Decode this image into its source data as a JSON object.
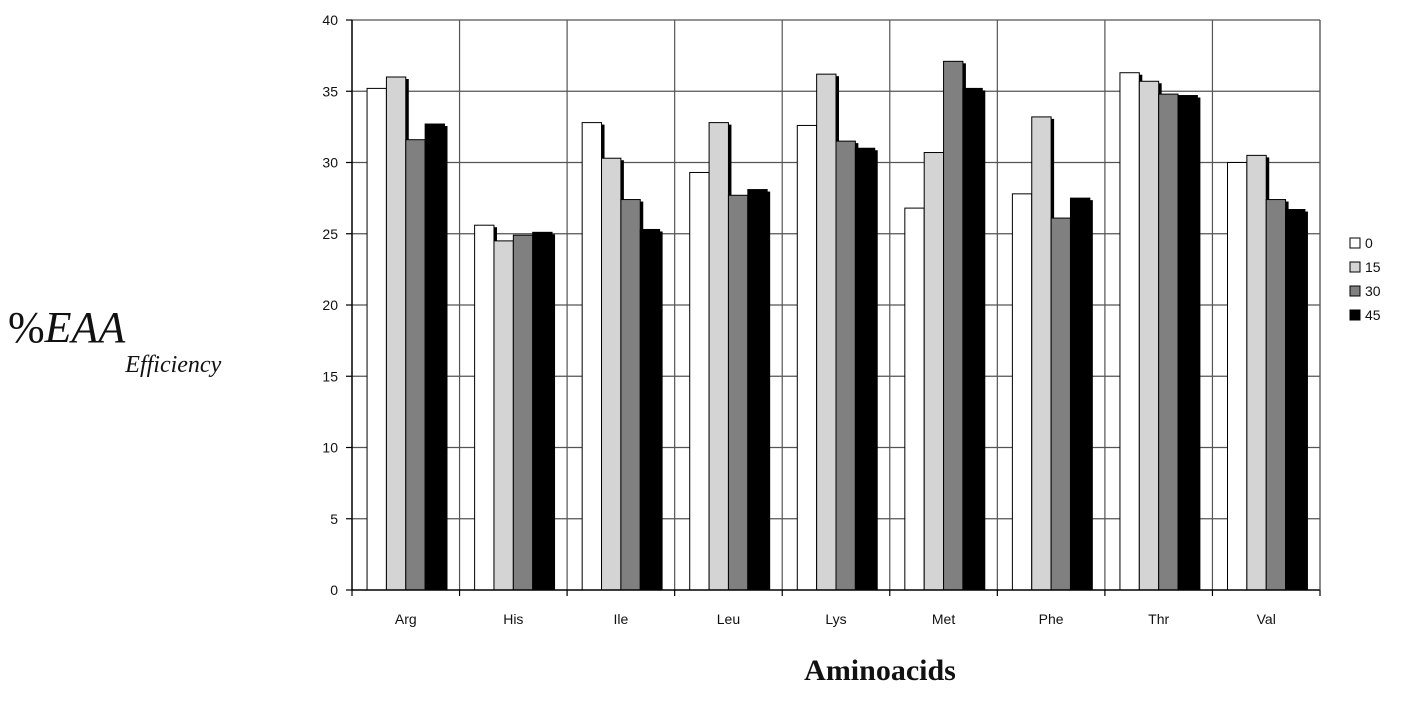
{
  "chart_data": {
    "type": "bar",
    "title": "",
    "xlabel": "Aminoacids",
    "ylabel": {
      "prefix": "%",
      "main": "EAA",
      "subscript": "Efficiency"
    },
    "ylim": [
      0,
      40
    ],
    "yticks": [
      0,
      5,
      10,
      15,
      20,
      25,
      30,
      35,
      40
    ],
    "grid": true,
    "legend_position": "right",
    "categories": [
      "Arg",
      "His",
      "Ile",
      "Leu",
      "Lys",
      "Met",
      "Phe",
      "Thr",
      "Val"
    ],
    "series": [
      {
        "name": "0",
        "color": "#ffffff",
        "values": [
          35.2,
          25.6,
          32.8,
          29.3,
          32.6,
          26.8,
          27.8,
          36.3,
          30.0
        ]
      },
      {
        "name": "15",
        "color": "#d4d4d4",
        "values": [
          36.0,
          24.5,
          30.3,
          32.8,
          36.2,
          30.7,
          33.2,
          35.7,
          30.5
        ]
      },
      {
        "name": "30",
        "color": "#808080",
        "values": [
          31.6,
          24.9,
          27.4,
          27.7,
          31.5,
          37.1,
          26.1,
          34.8,
          27.4
        ]
      },
      {
        "name": "45",
        "color": "#000000",
        "values": [
          32.7,
          25.1,
          25.3,
          28.1,
          31.0,
          35.2,
          27.5,
          34.7,
          26.7
        ]
      }
    ]
  }
}
